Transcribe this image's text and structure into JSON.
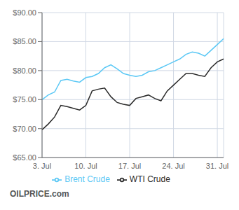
{
  "chart_data": {
    "type": "line",
    "categories": [
      "3. Jul",
      null,
      null,
      null,
      null,
      null,
      null,
      "10. Jul",
      null,
      null,
      null,
      null,
      null,
      null,
      "17. Jul",
      null,
      null,
      null,
      null,
      null,
      null,
      "24. Jul",
      null,
      null,
      null,
      null,
      null,
      null,
      "31. Jul",
      null
    ],
    "series": [
      {
        "name": "Brent Crude",
        "color": "#5bc8f5",
        "values": [
          75.0,
          75.8,
          76.3,
          78.3,
          78.5,
          78.2,
          78.0,
          78.8,
          79.0,
          79.5,
          80.5,
          81.0,
          80.3,
          79.5,
          79.2,
          79.0,
          79.2,
          79.8,
          80.0,
          80.5,
          81.0,
          81.5,
          82.0,
          82.8,
          83.2,
          83.0,
          82.5,
          83.5,
          84.5,
          85.5
        ]
      },
      {
        "name": "WTI Crude",
        "color": "#2b2b2b",
        "values": [
          69.8,
          70.8,
          72.0,
          74.0,
          73.8,
          73.5,
          73.2,
          74.0,
          76.5,
          76.8,
          77.0,
          75.5,
          74.5,
          74.2,
          74.0,
          75.2,
          75.5,
          75.8,
          75.2,
          74.8,
          76.5,
          77.5,
          78.5,
          79.5,
          79.5,
          79.2,
          79.0,
          80.5,
          81.5,
          82.0
        ]
      }
    ],
    "ylim": [
      65.0,
      90.0
    ],
    "yticks": [
      {
        "value": 65.0,
        "label": "$65.00"
      },
      {
        "value": 70.0,
        "label": "$70.00"
      },
      {
        "value": 75.0,
        "label": "$75.00"
      },
      {
        "value": 80.0,
        "label": "$80.00"
      },
      {
        "value": 85.0,
        "label": "$85.00"
      },
      {
        "value": 90.0,
        "label": "$90.00"
      }
    ],
    "grid": true,
    "legend": "bottom",
    "annotations": [
      "OILPRICE.com"
    ]
  }
}
